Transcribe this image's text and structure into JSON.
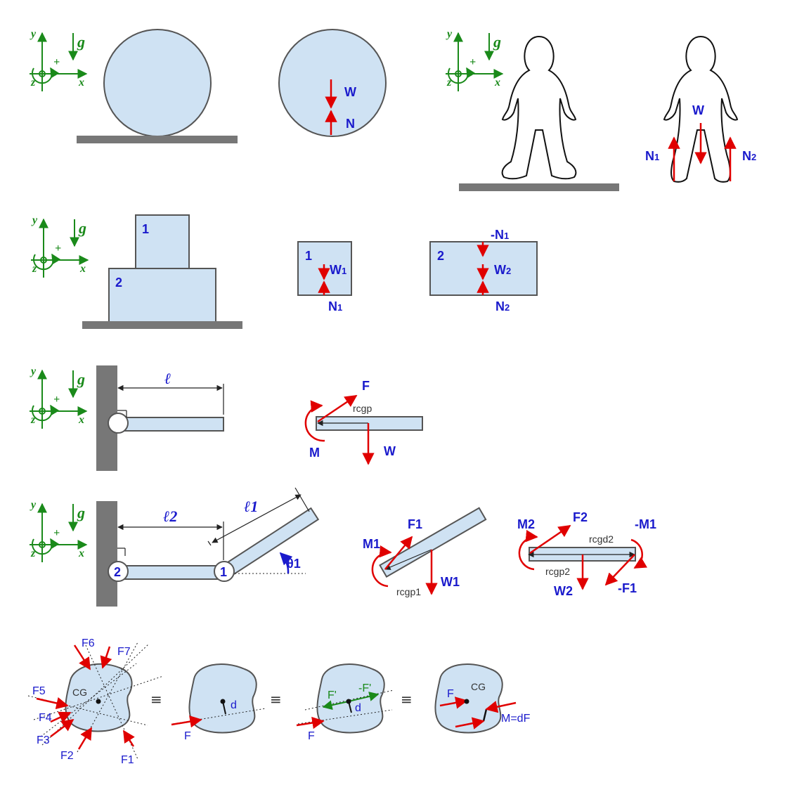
{
  "colors": {
    "block_fill": "#cfe2f3",
    "force": "#e00000",
    "label": "#1a1acc",
    "axes": "#1a8a1a",
    "ground": "#777777"
  },
  "axes": {
    "y": "y",
    "x": "x",
    "z": "z",
    "g": "g",
    "plus": "+"
  },
  "row1": {
    "ball_w": "W",
    "ball_n": "N",
    "person_w": "W",
    "person_n1": "N",
    "person_n1_sub": "1",
    "person_n2": "N",
    "person_n2_sub": "2"
  },
  "row2": {
    "block1_label": "1",
    "block2_label": "2",
    "fbd1_label": "1",
    "fbd1_w": "W",
    "fbd1_w_sub": "1",
    "fbd1_n": "N",
    "fbd1_n_sub": "1",
    "fbd2_label": "2",
    "fbd2_top": "-N",
    "fbd2_top_sub": "1",
    "fbd2_w": "W",
    "fbd2_w_sub": "2",
    "fbd2_n": "N",
    "fbd2_n_sub": "2"
  },
  "row3": {
    "length": "ℓ",
    "force_f": "F",
    "moment_m": "M",
    "weight_w": "W",
    "r_cgp": "rcgp"
  },
  "row4": {
    "length2": "ℓ2",
    "length1": "ℓ1",
    "joint2": "2",
    "joint1": "1",
    "theta": "θ1",
    "f1": "F1",
    "m1": "M1",
    "w1": "W1",
    "rcgp1": "rcgp1",
    "m2": "M2",
    "f2": "F2",
    "neg_m1": "-M1",
    "rcgd2": "rcgd2",
    "rcgp2": "rcgp2",
    "w2": "W2",
    "neg_f1": "-F1"
  },
  "row5": {
    "cg": "CG",
    "f6": "F6",
    "f7": "F7",
    "f5": "F5",
    "f4": "F4",
    "f3": "F3",
    "f2": "F2",
    "f1": "F1",
    "equiv": "≡",
    "d": "d",
    "f": "F",
    "f_prime": "F'",
    "neg_f_prime": "-F'",
    "m_df": "M=dF"
  }
}
